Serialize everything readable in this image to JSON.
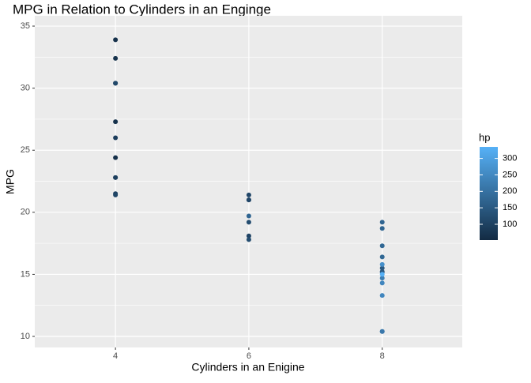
{
  "chart_data": {
    "type": "scatter",
    "title": "MPG in Relation to Cylinders in an Enginge",
    "x_label": "Cylinders in an Enigine",
    "y_label": "MPG",
    "color_legend_title": "hp",
    "color_low": "#132B43",
    "color_high": "#56B1F7",
    "color_lim": [
      52,
      335
    ],
    "color_ticks": [
      100,
      150,
      200,
      250,
      300
    ],
    "xlim": [
      2.79,
      9.2
    ],
    "xticks": [
      4,
      6,
      8
    ],
    "ylim": [
      9.11,
      35.83
    ],
    "yticks": [
      10,
      15,
      20,
      25,
      30,
      35
    ],
    "yminor": [
      12.5,
      17.5,
      22.5,
      27.5,
      32.5
    ],
    "grid": true,
    "series": [
      {
        "name": "hp",
        "x": [
          6,
          6,
          4,
          6,
          8,
          6,
          8,
          4,
          4,
          6,
          6,
          8,
          8,
          8,
          8,
          8,
          8,
          4,
          4,
          4,
          4,
          8,
          8,
          8,
          8,
          4,
          4,
          4,
          8,
          6,
          8,
          4
        ],
        "values": [
          21.0,
          21.0,
          22.8,
          21.4,
          18.7,
          18.1,
          14.3,
          24.4,
          22.8,
          19.2,
          17.8,
          16.4,
          17.3,
          15.2,
          10.4,
          10.4,
          14.7,
          32.4,
          30.4,
          33.9,
          21.5,
          15.5,
          15.2,
          13.3,
          19.2,
          27.3,
          26.0,
          30.4,
          15.8,
          19.7,
          15.0,
          21.4
        ],
        "hp": [
          110,
          110,
          93,
          110,
          175,
          105,
          245,
          62,
          95,
          123,
          123,
          180,
          180,
          180,
          205,
          215,
          230,
          66,
          52,
          65,
          97,
          150,
          150,
          245,
          175,
          66,
          91,
          113,
          264,
          175,
          335,
          109
        ]
      }
    ]
  }
}
